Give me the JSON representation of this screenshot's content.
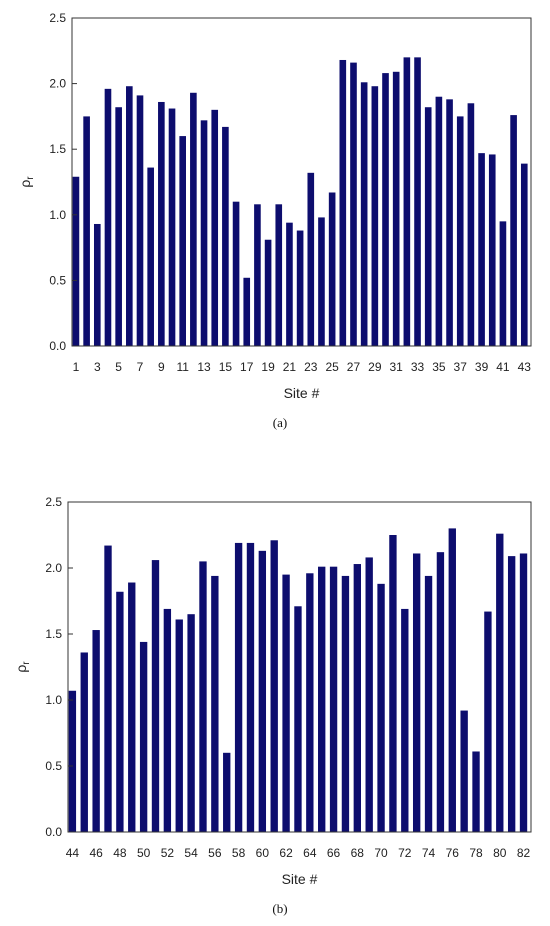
{
  "chart_data": [
    {
      "type": "bar",
      "caption": "(a)",
      "xlabel": "Site #",
      "ylabel": "ρr",
      "ylabel_main": "ρ",
      "ylabel_sub": "r",
      "ylim": [
        0,
        2.5
      ],
      "yticks": [
        "0.0",
        "0.5",
        "1.0",
        "1.5",
        "2.0",
        "2.5"
      ],
      "xtick_labels": [
        "1",
        "3",
        "5",
        "7",
        "9",
        "11",
        "13",
        "15",
        "17",
        "19",
        "21",
        "23",
        "25",
        "27",
        "29",
        "31",
        "33",
        "35",
        "37",
        "39",
        "41",
        "43"
      ],
      "color": "#0d0d6e",
      "categories": [
        1,
        2,
        3,
        4,
        5,
        6,
        7,
        8,
        9,
        10,
        11,
        12,
        13,
        14,
        15,
        16,
        17,
        18,
        19,
        20,
        21,
        22,
        23,
        24,
        25,
        26,
        27,
        28,
        29,
        30,
        31,
        32,
        33,
        34,
        35,
        36,
        37,
        38,
        39,
        40,
        41,
        42,
        43
      ],
      "values": [
        1.29,
        1.75,
        0.93,
        1.96,
        1.82,
        1.98,
        1.91,
        1.36,
        1.86,
        1.81,
        1.6,
        1.93,
        1.72,
        1.8,
        1.67,
        1.1,
        0.52,
        1.08,
        0.81,
        1.08,
        0.94,
        0.88,
        1.32,
        0.98,
        1.17,
        2.18,
        2.16,
        2.01,
        1.98,
        2.08,
        2.09,
        2.2,
        2.2,
        1.82,
        1.9,
        1.88,
        1.75,
        1.85,
        1.47,
        1.46,
        0.95,
        1.76,
        1.39
      ]
    },
    {
      "type": "bar",
      "caption": "(b)",
      "xlabel": "Site #",
      "ylabel": "ρr",
      "ylabel_main": "ρ",
      "ylabel_sub": "r",
      "ylim": [
        0,
        2.5
      ],
      "yticks": [
        "0.0",
        "0.5",
        "1.0",
        "1.5",
        "2.0",
        "2.5"
      ],
      "xtick_labels": [
        "44",
        "46",
        "48",
        "50",
        "52",
        "54",
        "56",
        "58",
        "60",
        "62",
        "64",
        "66",
        "68",
        "70",
        "72",
        "74",
        "76",
        "78",
        "80",
        "82"
      ],
      "color": "#0d0d6e",
      "categories": [
        44,
        45,
        46,
        47,
        48,
        49,
        50,
        51,
        52,
        53,
        54,
        55,
        56,
        57,
        58,
        59,
        60,
        61,
        62,
        63,
        64,
        65,
        66,
        67,
        68,
        69,
        70,
        71,
        72,
        73,
        74,
        75,
        76,
        77,
        78,
        79,
        80,
        81,
        82
      ],
      "values": [
        1.07,
        1.36,
        1.53,
        2.17,
        1.82,
        1.89,
        1.44,
        2.06,
        1.69,
        1.61,
        1.65,
        2.05,
        1.94,
        0.6,
        2.19,
        2.19,
        2.13,
        2.21,
        1.95,
        1.71,
        1.96,
        2.01,
        2.01,
        1.94,
        2.03,
        2.08,
        1.88,
        2.25,
        1.69,
        2.11,
        1.94,
        2.12,
        2.3,
        0.92,
        0.61,
        1.67,
        2.26,
        2.09,
        2.11
      ]
    }
  ]
}
